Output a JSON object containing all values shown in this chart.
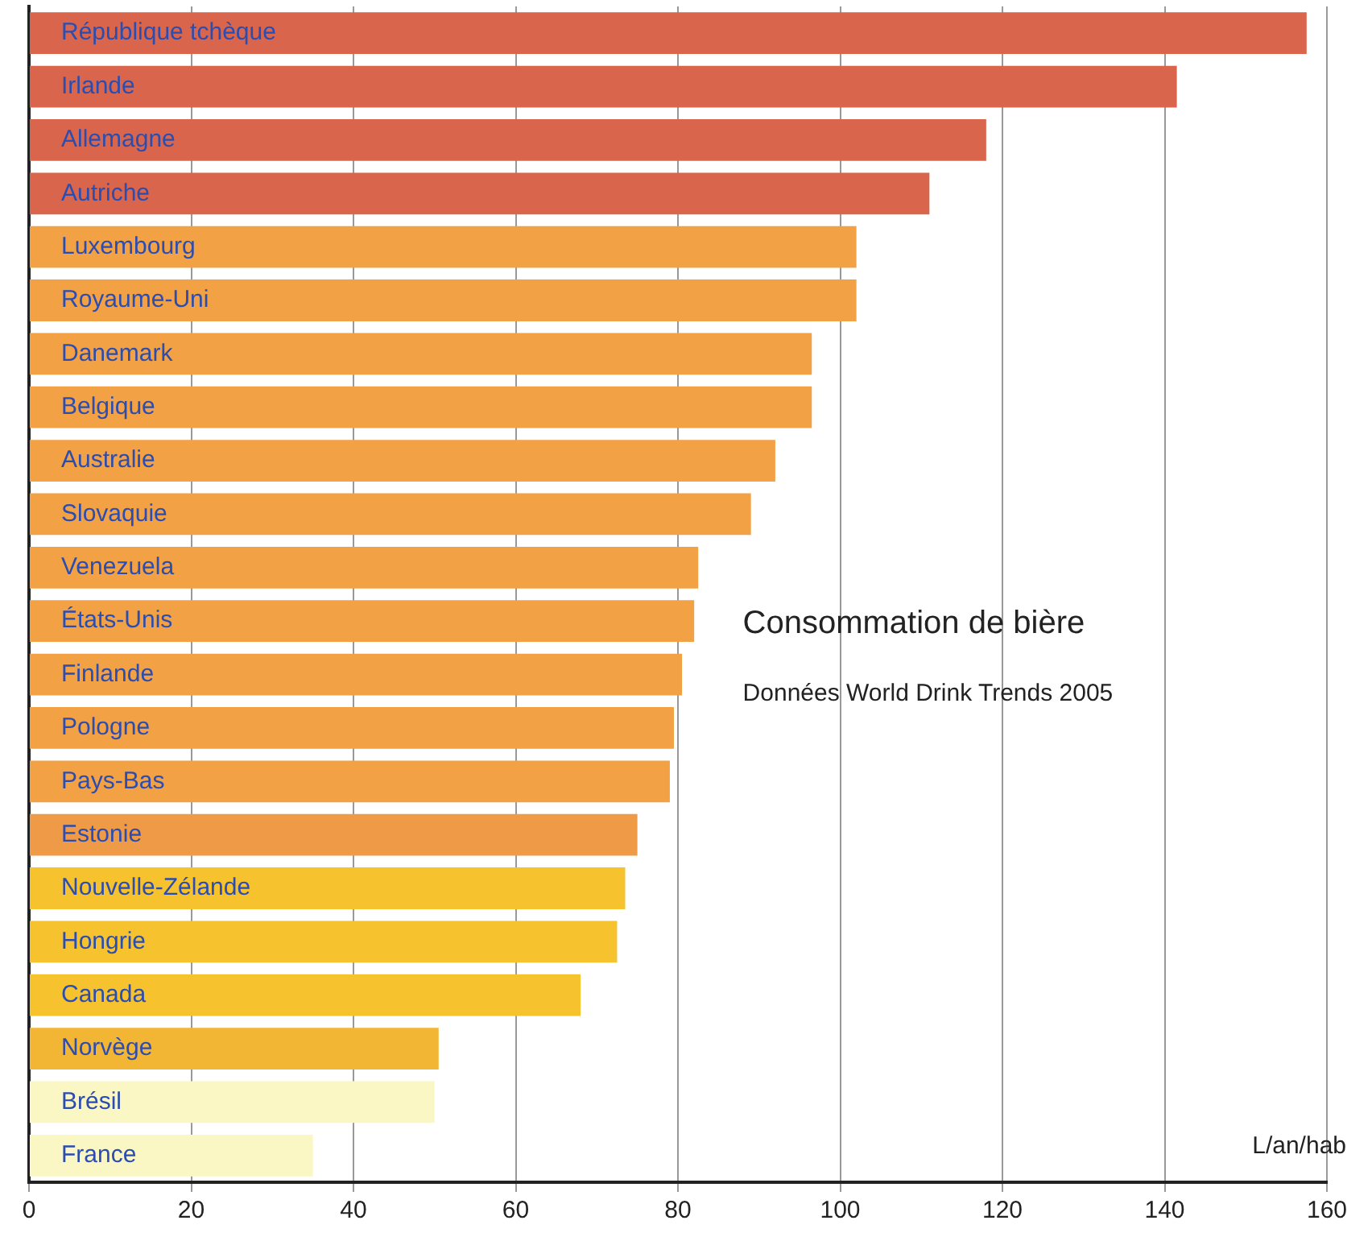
{
  "chart_data": {
    "type": "bar",
    "orientation": "horizontal",
    "title": "Consommation de bière",
    "subtitle": "Données World Drink Trends 2005",
    "xlabel": "L/an/hab",
    "categories": [
      "République tchèque",
      "Irlande",
      "Allemagne",
      "Autriche",
      "Luxembourg",
      "Royaume-Uni",
      "Danemark",
      "Belgique",
      "Australie",
      "Slovaquie",
      "Venezuela",
      "États-Unis",
      "Finlande",
      "Pologne",
      "Pays-Bas",
      "Estonie",
      "Nouvelle-Zélande",
      "Hongrie",
      "Canada",
      "Norvège",
      "Brésil",
      "France"
    ],
    "values": [
      157.5,
      141.5,
      118,
      111,
      102,
      102,
      96.5,
      96.5,
      92,
      89,
      82.5,
      82,
      80.5,
      79.5,
      79,
      75,
      73.5,
      72.5,
      68,
      50.5,
      50,
      35
    ],
    "colors": [
      "#d9664c",
      "#d9664c",
      "#d9664c",
      "#d9664c",
      "#f2a145",
      "#f2a145",
      "#f2a145",
      "#f2a145",
      "#f2a145",
      "#f2a145",
      "#f2a145",
      "#f2a145",
      "#f2a145",
      "#f2a145",
      "#f2a145",
      "#ef9a46",
      "#f6c22e",
      "#f6c22e",
      "#f6c22e",
      "#f3b534",
      "#fbf7c4",
      "#fbf7c4"
    ],
    "xlim": [
      0,
      160
    ],
    "xticks": [
      0,
      20,
      40,
      60,
      80,
      100,
      120,
      140,
      160
    ],
    "grid": "x"
  }
}
